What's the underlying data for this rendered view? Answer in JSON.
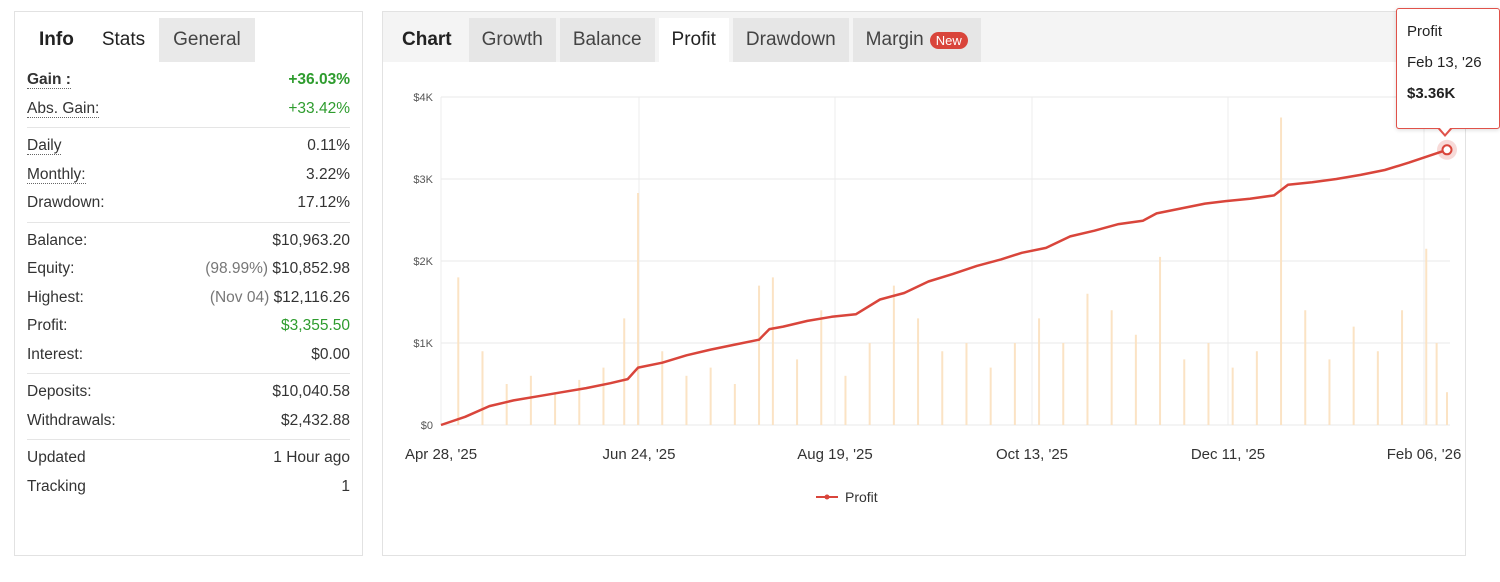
{
  "left_tabs": [
    "Info",
    "Stats",
    "General"
  ],
  "stats": {
    "gain": {
      "label": "Gain :",
      "value": "+36.03%"
    },
    "abs_gain": {
      "label": "Abs. Gain:",
      "value": "+33.42%"
    },
    "daily": {
      "label": "Daily",
      "value": "0.11%"
    },
    "monthly": {
      "label": "Monthly:",
      "value": "3.22%"
    },
    "drawdown": {
      "label": "Drawdown:",
      "value": "17.12%"
    },
    "balance": {
      "label": "Balance:",
      "value": "$10,963.20"
    },
    "equity": {
      "label": "Equity:",
      "prefix": "(98.99%)",
      "value": "$10,852.98"
    },
    "highest": {
      "label": "Highest:",
      "prefix": "(Nov 04)",
      "value": "$12,116.26"
    },
    "profit": {
      "label": "Profit:",
      "value": "$3,355.50"
    },
    "interest": {
      "label": "Interest:",
      "value": "$0.00"
    },
    "deposits": {
      "label": "Deposits:",
      "value": "$10,040.58"
    },
    "withdrawals": {
      "label": "Withdrawals:",
      "value": "$2,432.88"
    },
    "updated": {
      "label": "Updated",
      "value": "1 Hour ago"
    },
    "tracking": {
      "label": "Tracking",
      "value": "1"
    }
  },
  "right_tabs": {
    "chart": "Chart",
    "growth": "Growth",
    "balance": "Balance",
    "profit": "Profit",
    "drawdown": "Drawdown",
    "margin": "Margin",
    "margin_badge": "New"
  },
  "tooltip": {
    "series": "Profit",
    "date": "Feb 13, '26",
    "value": "$3.36K"
  },
  "colors": {
    "line": "#d9453b",
    "bars": "#fbe3c4",
    "green": "#2e9c2e"
  },
  "chart_data": {
    "type": "line",
    "ylim": [
      0,
      4000
    ],
    "y_ticks": [
      "$0",
      "$1K",
      "$2K",
      "$3K",
      "$4K"
    ],
    "x_ticks": [
      "Apr 28, '25",
      "Jun 24, '25",
      "Aug 19, '25",
      "Oct 13, '25",
      "Dec 11, '25",
      "Feb 06, '26"
    ],
    "legend": "Profit",
    "grid": true,
    "series": [
      {
        "name": "Profit",
        "points": [
          [
            "2025-04-28",
            0
          ],
          [
            "2025-05-05",
            100
          ],
          [
            "2025-05-12",
            230
          ],
          [
            "2025-05-19",
            300
          ],
          [
            "2025-05-26",
            350
          ],
          [
            "2025-06-02",
            400
          ],
          [
            "2025-06-09",
            450
          ],
          [
            "2025-06-16",
            510
          ],
          [
            "2025-06-21",
            560
          ],
          [
            "2025-06-24",
            700
          ],
          [
            "2025-07-01",
            760
          ],
          [
            "2025-07-08",
            850
          ],
          [
            "2025-07-15",
            920
          ],
          [
            "2025-07-22",
            980
          ],
          [
            "2025-07-29",
            1040
          ],
          [
            "2025-08-01",
            1170
          ],
          [
            "2025-08-05",
            1200
          ],
          [
            "2025-08-12",
            1270
          ],
          [
            "2025-08-19",
            1320
          ],
          [
            "2025-08-26",
            1350
          ],
          [
            "2025-09-02",
            1530
          ],
          [
            "2025-09-09",
            1610
          ],
          [
            "2025-09-16",
            1750
          ],
          [
            "2025-09-23",
            1840
          ],
          [
            "2025-09-30",
            1940
          ],
          [
            "2025-10-07",
            2020
          ],
          [
            "2025-10-13",
            2100
          ],
          [
            "2025-10-20",
            2160
          ],
          [
            "2025-10-27",
            2300
          ],
          [
            "2025-11-03",
            2370
          ],
          [
            "2025-11-10",
            2450
          ],
          [
            "2025-11-17",
            2490
          ],
          [
            "2025-11-21",
            2580
          ],
          [
            "2025-11-28",
            2640
          ],
          [
            "2025-12-05",
            2700
          ],
          [
            "2025-12-11",
            2730
          ],
          [
            "2025-12-18",
            2760
          ],
          [
            "2025-12-25",
            2800
          ],
          [
            "2025-12-29",
            2930
          ],
          [
            "2026-01-05",
            2960
          ],
          [
            "2026-01-12",
            3000
          ],
          [
            "2026-01-19",
            3050
          ],
          [
            "2026-01-26",
            3110
          ],
          [
            "2026-02-02",
            3200
          ],
          [
            "2026-02-09",
            3300
          ],
          [
            "2026-02-13",
            3356
          ]
        ]
      }
    ],
    "bars_max_value": 4000,
    "bars": [
      {
        "x": "2025-05-03",
        "v": 1800
      },
      {
        "x": "2025-05-10",
        "v": 900
      },
      {
        "x": "2025-05-17",
        "v": 500
      },
      {
        "x": "2025-05-24",
        "v": 600
      },
      {
        "x": "2025-05-31",
        "v": 400
      },
      {
        "x": "2025-06-07",
        "v": 550
      },
      {
        "x": "2025-06-14",
        "v": 700
      },
      {
        "x": "2025-06-20",
        "v": 1300
      },
      {
        "x": "2025-06-24",
        "v": 2830
      },
      {
        "x": "2025-07-01",
        "v": 900
      },
      {
        "x": "2025-07-08",
        "v": 600
      },
      {
        "x": "2025-07-15",
        "v": 700
      },
      {
        "x": "2025-07-22",
        "v": 500
      },
      {
        "x": "2025-07-29",
        "v": 1700
      },
      {
        "x": "2025-08-02",
        "v": 1800
      },
      {
        "x": "2025-08-09",
        "v": 800
      },
      {
        "x": "2025-08-16",
        "v": 1400
      },
      {
        "x": "2025-08-23",
        "v": 600
      },
      {
        "x": "2025-08-30",
        "v": 1000
      },
      {
        "x": "2025-09-06",
        "v": 1700
      },
      {
        "x": "2025-09-13",
        "v": 1300
      },
      {
        "x": "2025-09-20",
        "v": 900
      },
      {
        "x": "2025-09-27",
        "v": 1000
      },
      {
        "x": "2025-10-04",
        "v": 700
      },
      {
        "x": "2025-10-11",
        "v": 1000
      },
      {
        "x": "2025-10-18",
        "v": 1300
      },
      {
        "x": "2025-10-25",
        "v": 1000
      },
      {
        "x": "2025-11-01",
        "v": 1600
      },
      {
        "x": "2025-11-08",
        "v": 1400
      },
      {
        "x": "2025-11-15",
        "v": 1100
      },
      {
        "x": "2025-11-22",
        "v": 2050
      },
      {
        "x": "2025-11-29",
        "v": 800
      },
      {
        "x": "2025-12-06",
        "v": 1000
      },
      {
        "x": "2025-12-13",
        "v": 700
      },
      {
        "x": "2025-12-20",
        "v": 900
      },
      {
        "x": "2025-12-27",
        "v": 3750
      },
      {
        "x": "2026-01-03",
        "v": 1400
      },
      {
        "x": "2026-01-10",
        "v": 800
      },
      {
        "x": "2026-01-17",
        "v": 1200
      },
      {
        "x": "2026-01-24",
        "v": 900
      },
      {
        "x": "2026-01-31",
        "v": 1400
      },
      {
        "x": "2026-02-07",
        "v": 2150
      },
      {
        "x": "2026-02-10",
        "v": 1000
      },
      {
        "x": "2026-02-13",
        "v": 400
      }
    ]
  }
}
